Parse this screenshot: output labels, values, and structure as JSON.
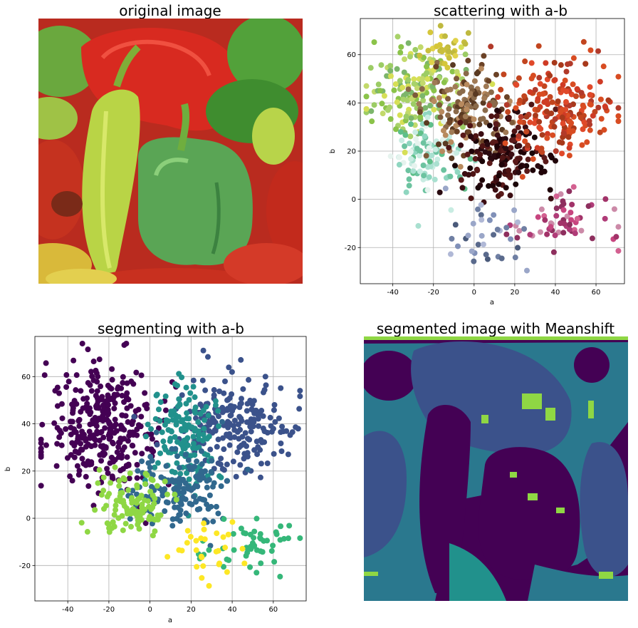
{
  "panels": {
    "original": {
      "title": "original image"
    },
    "segmented": {
      "title": "segmented image with Meanshift"
    }
  },
  "palette": {
    "viridis": [
      "#440154",
      "#3b528b",
      "#2a788e",
      "#21918c",
      "#8fd744",
      "#fde725"
    ],
    "pepper_red": "#c8241e",
    "pepper_green": "#5fae4e",
    "pepper_yellow": "#d7df4c"
  },
  "chart_data": [
    {
      "type": "scatter",
      "title": "scattering with a-b",
      "xlabel": "a",
      "ylabel": "b",
      "xlim": [
        -56,
        74
      ],
      "ylim": [
        -35,
        75
      ],
      "xticks": [
        -40,
        -20,
        0,
        20,
        40,
        60
      ],
      "yticks": [
        -20,
        0,
        20,
        40,
        60
      ],
      "grid": true,
      "coloring": "point color = pixel color (Lab a-b)",
      "clusters": [
        {
          "colors": [
            "#8bc34a",
            "#9ccc65",
            "#a8d26a",
            "#c2d96b",
            "#d6df56",
            "#7cb66b"
          ],
          "center": [
            -28,
            45
          ],
          "spread": [
            12,
            9
          ],
          "count": 160
        },
        {
          "colors": [
            "#6cc3a0",
            "#8fd6c0",
            "#a9e0d0",
            "#c8ece2",
            "#e6f3ee",
            "#5fbf8a"
          ],
          "center": [
            -22,
            18
          ],
          "spread": [
            8,
            9
          ],
          "count": 110
        },
        {
          "colors": [
            "#6b4226",
            "#7d5a3a",
            "#8a6a4a",
            "#a07a55",
            "#5a3a22",
            "#b88a5e"
          ],
          "center": [
            -3,
            38
          ],
          "spread": [
            10,
            10
          ],
          "count": 160
        },
        {
          "colors": [
            "#1a0508",
            "#2a0a10",
            "#3b0d12",
            "#4e1414",
            "#200308",
            "#5a1a1a"
          ],
          "center": [
            15,
            18
          ],
          "spread": [
            11,
            9
          ],
          "count": 170
        },
        {
          "colors": [
            "#a8391b",
            "#c2451f",
            "#d84c22",
            "#b23a2a",
            "#cf3b25",
            "#e0492a"
          ],
          "center": [
            42,
            38
          ],
          "spread": [
            14,
            10
          ],
          "count": 200
        },
        {
          "colors": [
            "#b03c78",
            "#c7457f",
            "#a23369",
            "#d36090",
            "#8e2f5e",
            "#cc8aa8"
          ],
          "center": [
            45,
            -10
          ],
          "spread": [
            14,
            7
          ],
          "count": 60
        },
        {
          "colors": [
            "#5a6a8c",
            "#6f7fa3",
            "#8090b8",
            "#9aa6c8",
            "#4a5a7a",
            "#b0b8d6"
          ],
          "center": [
            8,
            -15
          ],
          "spread": [
            10,
            7
          ],
          "count": 35
        },
        {
          "colors": [
            "#d5c63a",
            "#c9bf3c",
            "#e0d24a",
            "#bfb93f"
          ],
          "center": [
            -14,
            62
          ],
          "spread": [
            7,
            5
          ],
          "count": 30
        }
      ]
    },
    {
      "type": "scatter",
      "title": "segmenting with a-b",
      "xlabel": "a",
      "ylabel": "b",
      "xlim": [
        -56,
        76
      ],
      "ylim": [
        -35,
        77
      ],
      "xticks": [
        -40,
        -20,
        0,
        20,
        40,
        60
      ],
      "yticks": [
        -20,
        0,
        20,
        40,
        60
      ],
      "grid": true,
      "coloring": "point color = cluster label (viridis)",
      "clusters": [
        {
          "color": "#440154",
          "center": [
            -22,
            38
          ],
          "spread": [
            14,
            13
          ],
          "count": 330
        },
        {
          "color": "#3b528b",
          "center": [
            40,
            40
          ],
          "spread": [
            14,
            10
          ],
          "count": 220
        },
        {
          "color": "#21918c",
          "center": [
            18,
            35
          ],
          "spread": [
            9,
            12
          ],
          "count": 150
        },
        {
          "color": "#31688e",
          "center": [
            15,
            12
          ],
          "spread": [
            11,
            8
          ],
          "count": 150
        },
        {
          "color": "#8fd744",
          "center": [
            -8,
            5
          ],
          "spread": [
            9,
            6
          ],
          "count": 110
        },
        {
          "color": "#35b779",
          "center": [
            48,
            -12
          ],
          "spread": [
            12,
            7
          ],
          "count": 50
        },
        {
          "color": "#fde725",
          "center": [
            28,
            -12
          ],
          "spread": [
            8,
            8
          ],
          "count": 30
        }
      ]
    }
  ]
}
